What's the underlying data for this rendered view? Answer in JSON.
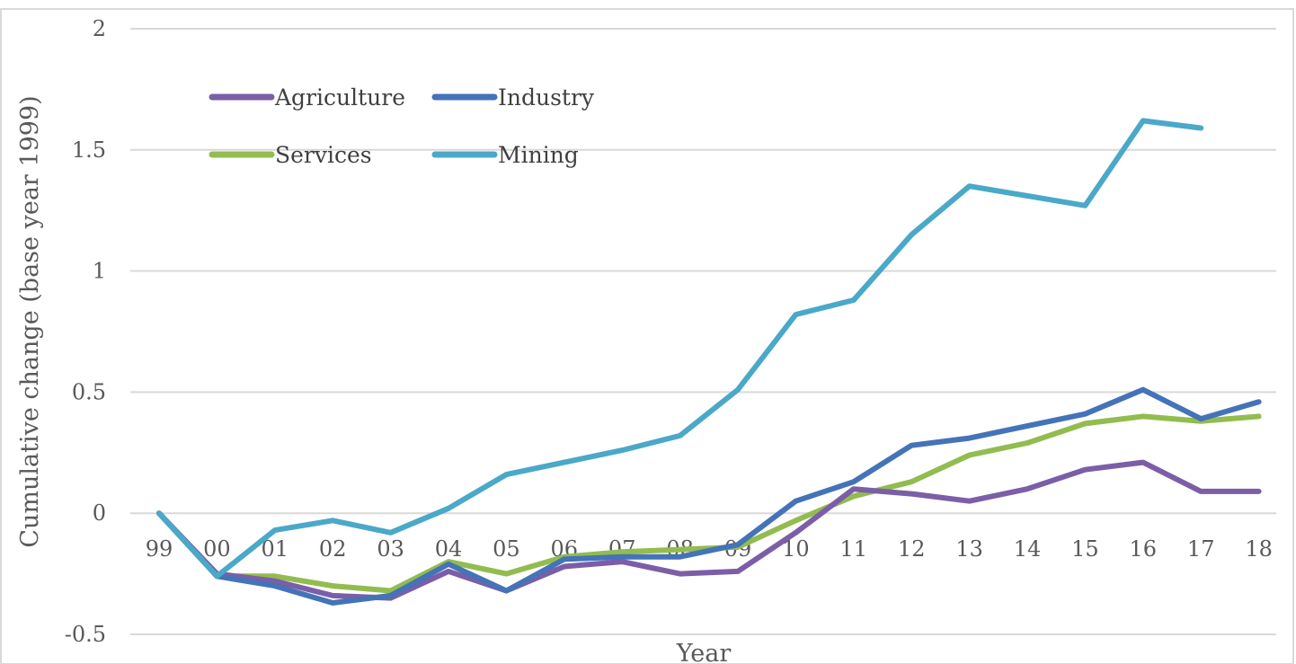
{
  "chart_data": {
    "type": "line",
    "xlabel": "Year",
    "ylabel": "Cumulative change (base year 1999)",
    "ylim": [
      -0.5,
      2
    ],
    "yticks": [
      "-0.5",
      "0",
      "0.5",
      "1",
      "1.5",
      "2"
    ],
    "ytick_values": [
      -0.5,
      0,
      0.5,
      1,
      1.5,
      2
    ],
    "categories": [
      "99",
      "00",
      "01",
      "02",
      "03",
      "04",
      "05",
      "06",
      "07",
      "08",
      "09",
      "10",
      "11",
      "12",
      "13",
      "14",
      "15",
      "16",
      "17",
      "18"
    ],
    "grid": true,
    "legend_position": "top-left",
    "series": [
      {
        "name": "Agriculture",
        "color": "#7b5ea7",
        "values": [
          0,
          -0.25,
          -0.28,
          -0.34,
          -0.35,
          -0.24,
          -0.32,
          -0.22,
          -0.2,
          -0.25,
          -0.24,
          -0.08,
          0.1,
          0.08,
          0.05,
          0.1,
          0.18,
          0.21,
          0.09,
          0.09
        ]
      },
      {
        "name": "Industry",
        "color": "#4473b8",
        "values": [
          0,
          -0.26,
          -0.3,
          -0.37,
          -0.34,
          -0.21,
          -0.32,
          -0.19,
          -0.18,
          -0.18,
          -0.13,
          0.05,
          0.13,
          0.28,
          0.31,
          0.36,
          0.41,
          0.51,
          0.39,
          0.46
        ]
      },
      {
        "name": "Services",
        "color": "#92bc4f",
        "values": [
          0,
          -0.26,
          -0.26,
          -0.3,
          -0.32,
          -0.2,
          -0.25,
          -0.18,
          -0.16,
          -0.15,
          -0.14,
          -0.03,
          0.07,
          0.13,
          0.24,
          0.29,
          0.37,
          0.4,
          0.38,
          0.4
        ]
      },
      {
        "name": "Mining",
        "color": "#4aa8c8",
        "values": [
          0,
          -0.26,
          -0.07,
          -0.03,
          -0.08,
          0.02,
          0.16,
          0.21,
          0.26,
          0.32,
          0.51,
          0.82,
          0.88,
          1.15,
          1.35,
          1.31,
          1.27,
          1.62,
          1.59,
          null
        ]
      }
    ]
  }
}
